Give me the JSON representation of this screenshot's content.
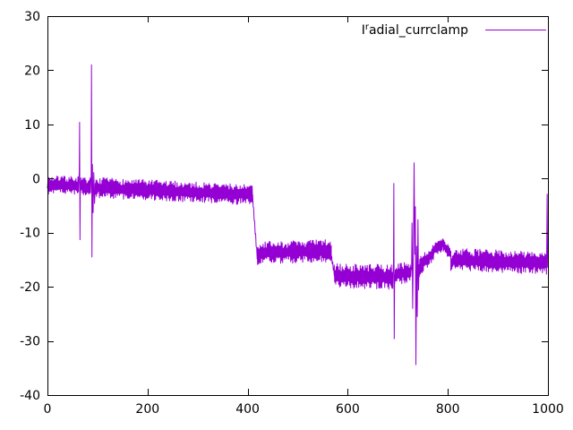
{
  "legend": {
    "prefix": "I",
    "superscript": "r",
    "rest": "adial_currclamp"
  },
  "colors": {
    "series": "#9400d3",
    "axis": "#000000",
    "background": "#ffffff"
  },
  "axes": {
    "x": {
      "min": 0,
      "max": 1000,
      "ticks": [
        0,
        200,
        400,
        600,
        800,
        1000
      ],
      "labels": [
        "0",
        "200",
        "400",
        "600",
        "800",
        "1000"
      ]
    },
    "y": {
      "min": -40,
      "max": 30,
      "ticks": [
        30,
        20,
        10,
        0,
        -10,
        -20,
        -30,
        -40
      ],
      "labels": [
        "30",
        "20",
        "10",
        "0",
        "-10",
        "-20",
        "-30",
        "-40"
      ]
    }
  },
  "chart_data": {
    "type": "line",
    "title": "",
    "series_name": "Iradial_currclamp",
    "xlim": [
      0,
      1000
    ],
    "ylim": [
      -40,
      30
    ],
    "grid": false,
    "legend_position": "top-right",
    "line_color": "#9400d3",
    "noise_seed": 7,
    "noise_step": 1,
    "segments": [
      {
        "x0": 0,
        "x1": 63,
        "y0": -1.2,
        "y1": -1.3,
        "amp": 1.7
      },
      {
        "x0": 66,
        "x1": 87,
        "y0": -1.4,
        "y1": -1.5,
        "amp": 1.6
      },
      {
        "x0": 96,
        "x1": 410,
        "y0": -1.7,
        "y1": -3.0,
        "amp": 1.9
      },
      {
        "x0": 410,
        "x1": 419,
        "y0": -3.5,
        "y1": -14.5,
        "amp": 0.7
      },
      {
        "x0": 419,
        "x1": 567,
        "y0": -13.8,
        "y1": -13.3,
        "amp": 2.1
      },
      {
        "x0": 567,
        "x1": 573,
        "y0": -14.5,
        "y1": -17.5,
        "amp": 0.7
      },
      {
        "x0": 573,
        "x1": 691,
        "y0": -18.0,
        "y1": -18.2,
        "amp": 2.3
      },
      {
        "x0": 694,
        "x1": 727,
        "y0": -17.6,
        "y1": -17.4,
        "amp": 2.0
      },
      {
        "x0": 743,
        "x1": 772,
        "y0": -16.3,
        "y1": -13.6,
        "amp": 1.8
      },
      {
        "x0": 772,
        "x1": 790,
        "y0": -13.2,
        "y1": -12.2,
        "amp": 1.2
      },
      {
        "x0": 790,
        "x1": 806,
        "y0": -12.2,
        "y1": -14.0,
        "amp": 1.2
      },
      {
        "x0": 806,
        "x1": 814,
        "y0": -15.8,
        "y1": -15.2,
        "amp": 1.5
      },
      {
        "x0": 814,
        "x1": 997,
        "y0": -15.0,
        "y1": -15.6,
        "amp": 2.1
      }
    ],
    "spikes": [
      [
        [
          63.6,
          1.2
        ],
        [
          64.2,
          10.4
        ],
        [
          65.0,
          -11.3
        ],
        [
          65.7,
          -0.6
        ]
      ],
      [
        [
          87.4,
          0.6
        ],
        [
          88.0,
          21.0
        ],
        [
          88.9,
          -14.5
        ],
        [
          89.8,
          2.6
        ],
        [
          91.2,
          -6.3
        ],
        [
          92.6,
          1.1
        ],
        [
          94.2,
          -4.6
        ],
        [
          95.5,
          -0.9
        ]
      ],
      [
        [
          691.4,
          -17.2
        ],
        [
          692.1,
          -0.9
        ],
        [
          692.9,
          -29.6
        ],
        [
          693.6,
          -17.8
        ]
      ],
      [
        [
          727.6,
          -16.8
        ],
        [
          728.4,
          -8.2
        ],
        [
          729.7,
          -24.0
        ],
        [
          731.3,
          -12.3
        ],
        [
          732.6,
          2.9
        ],
        [
          733.9,
          -14.0
        ],
        [
          735.0,
          -5.2
        ],
        [
          736.2,
          -34.4
        ],
        [
          737.6,
          -12.5
        ],
        [
          738.9,
          -25.5
        ],
        [
          740.3,
          -7.6
        ],
        [
          741.5,
          -20.6
        ],
        [
          742.6,
          -15.9
        ]
      ],
      [
        [
          997.4,
          -15.4
        ],
        [
          998.4,
          -2.9
        ],
        [
          999.4,
          -16.4
        ],
        [
          1000,
          -15.8
        ]
      ]
    ]
  }
}
